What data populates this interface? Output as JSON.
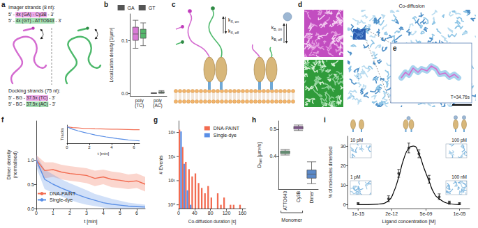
{
  "panel_labels": [
    "a",
    "b",
    "c",
    "d",
    "e",
    "f",
    "g",
    "h",
    "i"
  ],
  "diagram_a": {
    "imager_title": "Imager strands (8 nt):",
    "imager_strands": [
      {
        "segments": [
          "5' - ",
          "4x (GA) - Cy3B",
          " - 3'"
        ],
        "color": "#eeaaea"
      },
      {
        "segments": [
          "5' - ",
          "4x (GT) - ATTO643",
          " - 3'"
        ],
        "color": "#a6e0b4"
      }
    ],
    "docking_title": "Docking strands (75 nt):",
    "docking_strands": [
      {
        "segments": [
          "5' - BG - ",
          "37.5x (TC)",
          " - 3'"
        ],
        "color": "#eeaaea"
      },
      {
        "segments": [
          "5' - BG - ",
          "37.5x (AC)",
          " - 3'"
        ],
        "color": "#a6e0b4"
      }
    ]
  },
  "diagram_c": {
    "rates": [
      {
        "symbol": "k",
        "subscript": "X, on"
      },
      {
        "symbol": "k",
        "subscript": "X, off"
      },
      {
        "symbol": "k",
        "subscript": "B, on"
      },
      {
        "symbol": "k",
        "subscript": "B, off"
      }
    ]
  },
  "image_d": {
    "title": "Co-diffusion"
  },
  "image_e": {
    "annotation": "T=34.76s"
  },
  "chart_data": [
    {
      "type": "boxplot",
      "y_label": "Localization density [1/µm²]",
      "categories": [
        "poly(TC)",
        "poly(AC)"
      ],
      "series": [
        {
          "name": "GA",
          "color": "#d97ad6",
          "values": [
            [
              0.085,
              0.1,
              0.112,
              0.125,
              0.138
            ],
            [
              0,
              0,
              0,
              0.0005,
              0.001
            ]
          ]
        },
        {
          "name": "GT",
          "color": "#55b86c",
          "values": [
            [
              0.09,
              0.104,
              0.113,
              0.121,
              0.133
            ],
            [
              0,
              0.001,
              0.002,
              0.003,
              0.005
            ]
          ]
        }
      ],
      "ylim": [
        -0.005,
        0.15
      ],
      "yticks": [
        {
          "value": 0,
          "label": "0.0"
        },
        {
          "value": 0.1,
          "label": "0.1"
        }
      ],
      "legend": "top"
    },
    {
      "type": "line",
      "x_label": "t [min]",
      "y_label": "Dimer density (normalised)",
      "x": [
        0,
        0.5,
        1,
        1.5,
        2,
        2.5,
        3,
        3.5,
        4,
        4.5,
        5,
        5.5,
        6,
        6.5
      ],
      "series": [
        {
          "name": "DNA-PAINT",
          "color": "#f26b50",
          "values": [
            1.0,
            0.78,
            0.8,
            0.75,
            0.72,
            0.7,
            0.68,
            0.62,
            0.65,
            0.6,
            0.58,
            0.55,
            0.57,
            0.5
          ],
          "band_lower": [
            0.9,
            0.62,
            0.65,
            0.6,
            0.57,
            0.55,
            0.52,
            0.46,
            0.5,
            0.44,
            0.42,
            0.4,
            0.42,
            0.35
          ],
          "band_upper": [
            1.1,
            0.95,
            0.95,
            0.9,
            0.87,
            0.85,
            0.83,
            0.78,
            0.8,
            0.76,
            0.74,
            0.7,
            0.72,
            0.65
          ]
        },
        {
          "name": "Single-dye",
          "color": "#5a8fe6",
          "values": [
            1.0,
            0.6,
            0.5,
            0.42,
            0.35,
            0.28,
            0.22,
            0.17,
            0.12,
            0.09,
            0.07,
            0.05,
            0.04,
            0.03
          ],
          "band_lower": [
            0.85,
            0.4,
            0.32,
            0.25,
            0.18,
            0.12,
            0.08,
            0.05,
            0.02,
            0,
            0,
            0,
            0,
            0
          ],
          "band_upper": [
            1.1,
            0.8,
            0.7,
            0.6,
            0.52,
            0.45,
            0.38,
            0.3,
            0.25,
            0.2,
            0.16,
            0.12,
            0.1,
            0.08
          ]
        }
      ],
      "xlim": [
        0,
        6.5
      ],
      "xticks": [
        0,
        1,
        2,
        3,
        4,
        5,
        6
      ],
      "ylim": [
        0,
        1.8
      ],
      "yticks": [
        {
          "value": 0,
          "label": "0.0"
        },
        {
          "value": 0.5,
          "label": "0.5"
        },
        {
          "value": 1,
          "label": "1.0"
        }
      ],
      "legend": "bottom-left"
    },
    {
      "type": "line",
      "x_label": "t [min]",
      "y_label": "Tracks",
      "x": [
        0,
        0.5,
        1,
        1.5,
        2,
        2.5,
        3,
        3.5,
        4,
        4.5,
        5,
        5.5,
        6,
        6.5
      ],
      "series": [
        {
          "color": "#f26b50",
          "values": [
            1.0,
            0.95,
            0.93,
            0.9,
            0.9,
            0.88,
            0.87,
            0.86,
            0.85,
            0.85,
            0.84,
            0.83,
            0.82,
            0.82
          ]
        },
        {
          "color": "#5a8fe6",
          "values": [
            1.0,
            0.85,
            0.75,
            0.66,
            0.58,
            0.5,
            0.44,
            0.38,
            0.33,
            0.28,
            0.24,
            0.2,
            0.17,
            0.14
          ]
        }
      ],
      "xlim": [
        0,
        6.5
      ],
      "xticks": [
        0,
        2,
        4,
        6
      ],
      "ylim": [
        0,
        1.1
      ],
      "tick_labels": "x"
    },
    {
      "type": "histogram",
      "x_label": "Co-diffusion duration [s]",
      "y_label": "# Events",
      "log": "y",
      "bins": [
        0,
        8,
        16,
        24,
        32,
        40,
        48,
        56,
        64,
        72,
        80,
        88,
        96,
        104,
        112,
        120,
        128,
        136,
        144,
        152,
        160
      ],
      "series": [
        {
          "name": "DNA-PAINT",
          "color": "#f26b50",
          "values": [
            1300,
            250,
            60,
            30,
            15,
            20,
            8,
            5,
            3,
            6,
            2,
            null,
            3,
            1,
            2,
            null,
            1,
            1,
            null,
            1
          ]
        },
        {
          "name": "Single-dye",
          "color": "#5a8fe6",
          "values": [
            1100,
            50,
            4,
            1,
            null,
            null,
            null,
            null,
            null,
            null,
            null,
            null,
            null,
            null,
            null,
            null,
            null,
            null,
            null,
            null
          ]
        }
      ],
      "xlim": [
        0,
        168
      ],
      "xticks": [
        0,
        40,
        80,
        120,
        160
      ],
      "ylim": [
        0.7,
        3000
      ],
      "yticks": [
        {
          "value": 1,
          "label": "10⁰"
        },
        {
          "value": 10,
          "label": "10¹"
        },
        {
          "value": 100,
          "label": "10²"
        },
        {
          "value": 1000,
          "label": "10³"
        }
      ],
      "legend": "top-right"
    },
    {
      "type": "boxplot",
      "y_label": {
        "text": "D",
        "subscript": "fast",
        "suffix": " [µm²/s]"
      },
      "categories": [
        "ATTO643",
        "Cy3B",
        "Dimer"
      ],
      "category_groups": [
        {
          "label": "Monomer",
          "categories": [
            "ATTO643",
            "Cy3B"
          ]
        }
      ],
      "colors": [
        "#74b88a",
        "#a05fb5",
        "#5b89c9"
      ],
      "values": [
        [
          0.405,
          0.41,
          0.415,
          0.42,
          0.425
        ],
        [
          0.495,
          0.5,
          0.505,
          0.51,
          0.515
        ],
        [
          0.3,
          0.32,
          0.335,
          0.35,
          0.38
        ]
      ],
      "ylim": [
        0.28,
        0.53
      ],
      "yticks": [
        0.4,
        0.5
      ]
    },
    {
      "type": "scatter",
      "log": "x",
      "x_label": "Ligand concentration [M]",
      "y_label": "% of molecules dimerised",
      "series": [
        {
          "type": "scatter",
          "color": "#222222",
          "x": [
            1e-15,
            1e-12,
            1e-11,
            1e-10,
            1e-09,
            1e-08,
            1e-07,
            1e-06,
            1e-05
          ],
          "values": [
            0.5,
            3,
            16,
            29,
            26,
            13,
            4,
            1,
            0.5
          ],
          "errors": [
            0.5,
            1.5,
            2,
            2.5,
            2,
            2,
            1.5,
            0.8,
            0.5
          ]
        },
        {
          "type": "line",
          "color": "#000000",
          "x": [
            1e-15,
            1e-13,
            1e-12,
            3e-12,
            1e-11,
            3e-11,
            1e-10,
            3e-10,
            1e-09,
            3e-09,
            1e-08,
            3e-08,
            1e-07,
            1e-06,
            1e-05
          ],
          "values": [
            0,
            0.3,
            2,
            6,
            14,
            23,
            29,
            30,
            26,
            19,
            12,
            6,
            3,
            0.5,
            0
          ]
        }
      ],
      "xlim": [
        1e-16,
        0.0001
      ],
      "xticks": [
        {
          "value": 1e-15,
          "label": "1e-15"
        },
        {
          "value": 2e-12,
          "label": "2e-12"
        },
        {
          "value": 5e-09,
          "label": "5e-09"
        },
        {
          "value": 1e-05,
          "label": "1e-05"
        }
      ],
      "ylim": [
        -2,
        35
      ],
      "yticks": [
        0,
        10,
        20,
        30
      ],
      "inset_labels": [
        "10 pM",
        "100 pM",
        "1 pM",
        "100 nM"
      ]
    }
  ]
}
